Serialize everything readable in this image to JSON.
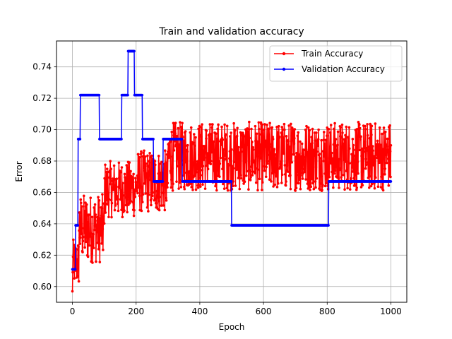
{
  "chart_data": {
    "type": "line",
    "title": "Train and validation accuracy",
    "xlabel": "Epoch",
    "ylabel": "Error",
    "xlim": [
      -50,
      1050
    ],
    "ylim": [
      0.59,
      0.7565
    ],
    "xticks": [
      0,
      200,
      400,
      600,
      800,
      1000
    ],
    "xtick_labels": [
      "0",
      "200",
      "400",
      "600",
      "800",
      "1000"
    ],
    "yticks": [
      0.6,
      0.62,
      0.64,
      0.66,
      0.68,
      0.7,
      0.72,
      0.74
    ],
    "ytick_labels": [
      "0.60",
      "0.62",
      "0.64",
      "0.66",
      "0.68",
      "0.70",
      "0.72",
      "0.74"
    ],
    "grid": true,
    "legend_position": "top-right",
    "series": [
      {
        "name": "Train Accuracy",
        "color": "#ff0000",
        "marker": "dot",
        "note_pattern": "noisy per-epoch values, ~1000 points",
        "segments": [
          {
            "from_epoch": 0,
            "to_epoch": 20,
            "mean": 0.615,
            "amp": 0.015
          },
          {
            "from_epoch": 20,
            "to_epoch": 100,
            "mean": 0.637,
            "amp": 0.022
          },
          {
            "from_epoch": 100,
            "to_epoch": 200,
            "mean": 0.662,
            "amp": 0.018
          },
          {
            "from_epoch": 200,
            "to_epoch": 300,
            "mean": 0.667,
            "amp": 0.02
          },
          {
            "from_epoch": 300,
            "to_epoch": 1000,
            "mean": 0.683,
            "amp": 0.022
          }
        ],
        "end_value": 0.69
      },
      {
        "name": "Validation Accuracy",
        "color": "#0000ff",
        "marker": "dot",
        "steps": [
          {
            "from": 0,
            "to": 10,
            "value": 0.611
          },
          {
            "from": 10,
            "to": 18,
            "value": 0.639
          },
          {
            "from": 18,
            "to": 25,
            "value": 0.694
          },
          {
            "from": 25,
            "to": 85,
            "value": 0.722
          },
          {
            "from": 85,
            "to": 155,
            "value": 0.694
          },
          {
            "from": 155,
            "to": 175,
            "value": 0.722
          },
          {
            "from": 175,
            "to": 195,
            "value": 0.75
          },
          {
            "from": 195,
            "to": 220,
            "value": 0.722
          },
          {
            "from": 220,
            "to": 255,
            "value": 0.694
          },
          {
            "from": 255,
            "to": 285,
            "value": 0.667
          },
          {
            "from": 285,
            "to": 345,
            "value": 0.694
          },
          {
            "from": 345,
            "to": 500,
            "value": 0.667
          },
          {
            "from": 500,
            "to": 805,
            "value": 0.639
          },
          {
            "from": 805,
            "to": 1000,
            "value": 0.667
          }
        ]
      }
    ]
  }
}
